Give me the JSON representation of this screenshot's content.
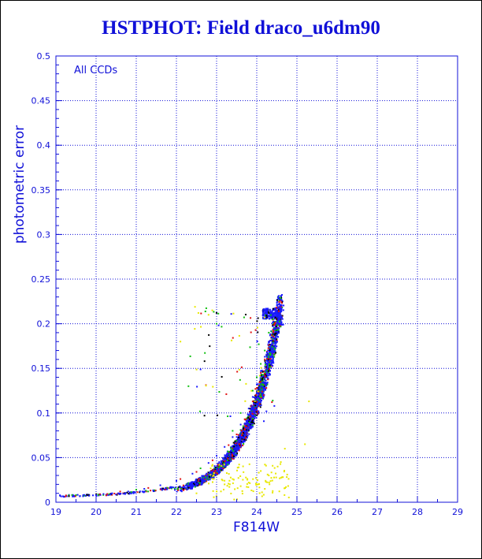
{
  "chart_data": {
    "type": "scatter",
    "title": "HSTPHOT: Field draco_u6dm90",
    "xlabel": "F814W",
    "ylabel": "photometric error",
    "annotation": "All CCDs",
    "xlim": [
      19,
      29
    ],
    "ylim": [
      0,
      0.5
    ],
    "xticks": [
      "19",
      "20",
      "21",
      "22",
      "23",
      "24",
      "25",
      "26",
      "27",
      "28",
      "29"
    ],
    "yticks": [
      "0",
      "0.05",
      "0.1",
      "0.15",
      "0.2",
      "0.25",
      "0.3",
      "0.35",
      "0.4",
      "0.45",
      "0.5"
    ],
    "grid": true,
    "colors": {
      "frame": "#1010d8",
      "grid": "#1010d8",
      "blue": "#1a1aff",
      "red": "#e01010",
      "green": "#10c010",
      "yellow": "#e8e800",
      "black": "#000000"
    },
    "series": [
      {
        "color": "blue",
        "description_points": [
          [
            19.2,
            0.006
          ],
          [
            19.6,
            0.007
          ],
          [
            20.0,
            0.008
          ],
          [
            20.4,
            0.01
          ],
          [
            20.8,
            0.012
          ],
          [
            21.2,
            0.015
          ],
          [
            21.6,
            0.019
          ],
          [
            22.0,
            0.024
          ],
          [
            22.4,
            0.032
          ],
          [
            22.8,
            0.044
          ],
          [
            23.0,
            0.052
          ],
          [
            23.2,
            0.062
          ],
          [
            23.4,
            0.073
          ],
          [
            23.6,
            0.087
          ],
          [
            23.8,
            0.105
          ],
          [
            23.9,
            0.118
          ],
          [
            24.0,
            0.132
          ],
          [
            24.1,
            0.147
          ],
          [
            24.2,
            0.163
          ],
          [
            24.3,
            0.18
          ],
          [
            24.4,
            0.197
          ],
          [
            24.5,
            0.212
          ],
          [
            24.6,
            0.216
          ]
        ]
      },
      {
        "color": "red",
        "description_points": [
          [
            20.6,
            0.012
          ],
          [
            21.3,
            0.016
          ],
          [
            22.1,
            0.026
          ],
          [
            22.5,
            0.034
          ],
          [
            22.9,
            0.047
          ],
          [
            23.3,
            0.064
          ],
          [
            23.5,
            0.076
          ],
          [
            23.7,
            0.093
          ],
          [
            23.9,
            0.113
          ],
          [
            24.0,
            0.128
          ],
          [
            24.1,
            0.145
          ],
          [
            24.2,
            0.16
          ],
          [
            24.3,
            0.176
          ],
          [
            24.45,
            0.2
          ],
          [
            24.55,
            0.214
          ]
        ]
      },
      {
        "color": "green",
        "description_points": [
          [
            19.5,
            0.008
          ],
          [
            21.0,
            0.014
          ],
          [
            22.6,
            0.038
          ],
          [
            23.4,
            0.08
          ],
          [
            23.6,
            0.1
          ],
          [
            23.9,
            0.125
          ],
          [
            24.0,
            0.14
          ],
          [
            24.1,
            0.155
          ],
          [
            24.2,
            0.17
          ],
          [
            24.3,
            0.19
          ],
          [
            24.4,
            0.205
          ],
          [
            22.3,
            0.13
          ],
          [
            23.0,
            0.2
          ]
        ]
      },
      {
        "color": "yellow",
        "description_points": [
          [
            22.5,
            0.01
          ],
          [
            23.2,
            0.02
          ],
          [
            23.4,
            0.026
          ],
          [
            23.6,
            0.018
          ],
          [
            23.8,
            0.022
          ],
          [
            24.0,
            0.02
          ],
          [
            24.2,
            0.015
          ],
          [
            24.1,
            0.035
          ],
          [
            24.3,
            0.03
          ],
          [
            24.6,
            0.045
          ],
          [
            24.7,
            0.06
          ],
          [
            25.2,
            0.065
          ],
          [
            25.3,
            0.113
          ],
          [
            22.8,
            0.21
          ],
          [
            22.1,
            0.18
          ]
        ]
      }
    ]
  }
}
